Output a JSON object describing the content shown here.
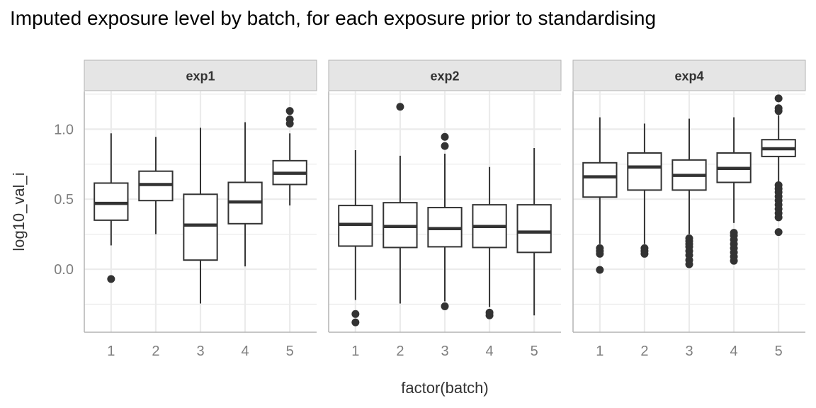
{
  "title": "Imputed exposure level by batch, for each exposure prior to standardising",
  "chart_data": {
    "type": "boxplot",
    "xlabel": "factor(batch)",
    "ylabel": "log10_val_i",
    "categories": [
      "1",
      "2",
      "3",
      "4",
      "5"
    ],
    "ylim": [
      -0.45,
      1.27
    ],
    "yticks": [
      0.0,
      0.5,
      1.0
    ],
    "ytick_labels": [
      "0.0",
      "0.5",
      "1.0"
    ],
    "grid": true,
    "colors": {
      "strip_fill": "#e5e5e5",
      "strip_border": "#b3b3b3",
      "grid": "#ebebeb",
      "box": "#333333"
    },
    "panels": [
      {
        "name": "exp1",
        "boxes": [
          {
            "batch": "1",
            "whisker_low": 0.17,
            "q1": 0.35,
            "median": 0.47,
            "q3": 0.615,
            "whisker_high": 0.97,
            "outliers": [
              -0.07
            ]
          },
          {
            "batch": "2",
            "whisker_low": 0.25,
            "q1": 0.49,
            "median": 0.605,
            "q3": 0.7,
            "whisker_high": 0.945,
            "outliers": []
          },
          {
            "batch": "3",
            "whisker_low": -0.245,
            "q1": 0.065,
            "median": 0.315,
            "q3": 0.535,
            "whisker_high": 1.01,
            "outliers": []
          },
          {
            "batch": "4",
            "whisker_low": 0.02,
            "q1": 0.325,
            "median": 0.48,
            "q3": 0.62,
            "whisker_high": 1.05,
            "outliers": []
          },
          {
            "batch": "5",
            "whisker_low": 0.455,
            "q1": 0.605,
            "median": 0.685,
            "q3": 0.775,
            "whisker_high": 0.97,
            "outliers": [
              1.04,
              1.07,
              1.13
            ]
          }
        ]
      },
      {
        "name": "exp2",
        "boxes": [
          {
            "batch": "1",
            "whisker_low": -0.22,
            "q1": 0.165,
            "median": 0.32,
            "q3": 0.455,
            "whisker_high": 0.85,
            "outliers": [
              -0.32,
              -0.38
            ]
          },
          {
            "batch": "2",
            "whisker_low": -0.245,
            "q1": 0.155,
            "median": 0.305,
            "q3": 0.475,
            "whisker_high": 0.81,
            "outliers": [
              1.16
            ]
          },
          {
            "batch": "3",
            "whisker_low": -0.23,
            "q1": 0.16,
            "median": 0.29,
            "q3": 0.44,
            "whisker_high": 0.825,
            "outliers": [
              -0.265,
              0.88,
              0.945
            ]
          },
          {
            "batch": "4",
            "whisker_low": -0.27,
            "q1": 0.155,
            "median": 0.305,
            "q3": 0.46,
            "whisker_high": 0.73,
            "outliers": [
              -0.31,
              -0.33
            ]
          },
          {
            "batch": "5",
            "whisker_low": -0.33,
            "q1": 0.12,
            "median": 0.265,
            "q3": 0.46,
            "whisker_high": 0.865,
            "outliers": []
          }
        ]
      },
      {
        "name": "exp4",
        "boxes": [
          {
            "batch": "1",
            "whisker_low": 0.18,
            "q1": 0.515,
            "median": 0.66,
            "q3": 0.76,
            "whisker_high": 1.085,
            "outliers": [
              0.15,
              0.13,
              0.11,
              -0.005
            ]
          },
          {
            "batch": "2",
            "whisker_low": 0.18,
            "q1": 0.565,
            "median": 0.73,
            "q3": 0.83,
            "whisker_high": 1.04,
            "outliers": [
              0.15,
              0.13,
              0.11
            ]
          },
          {
            "batch": "3",
            "whisker_low": 0.25,
            "q1": 0.565,
            "median": 0.67,
            "q3": 0.78,
            "whisker_high": 1.075,
            "outliers": [
              0.22,
              0.2,
              0.18,
              0.16,
              0.13,
              0.1,
              0.065,
              0.035
            ]
          },
          {
            "batch": "4",
            "whisker_low": 0.33,
            "q1": 0.62,
            "median": 0.72,
            "q3": 0.83,
            "whisker_high": 1.085,
            "outliers": [
              0.26,
              0.24,
              0.21,
              0.18,
              0.15,
              0.12,
              0.09,
              0.06
            ]
          },
          {
            "batch": "5",
            "whisker_low": 0.62,
            "q1": 0.805,
            "median": 0.86,
            "q3": 0.925,
            "whisker_high": 1.1,
            "outliers": [
              1.13,
              1.15,
              1.22,
              0.6,
              0.575,
              0.55,
              0.52,
              0.49,
              0.46,
              0.43,
              0.4,
              0.37,
              0.265
            ]
          }
        ]
      }
    ]
  }
}
